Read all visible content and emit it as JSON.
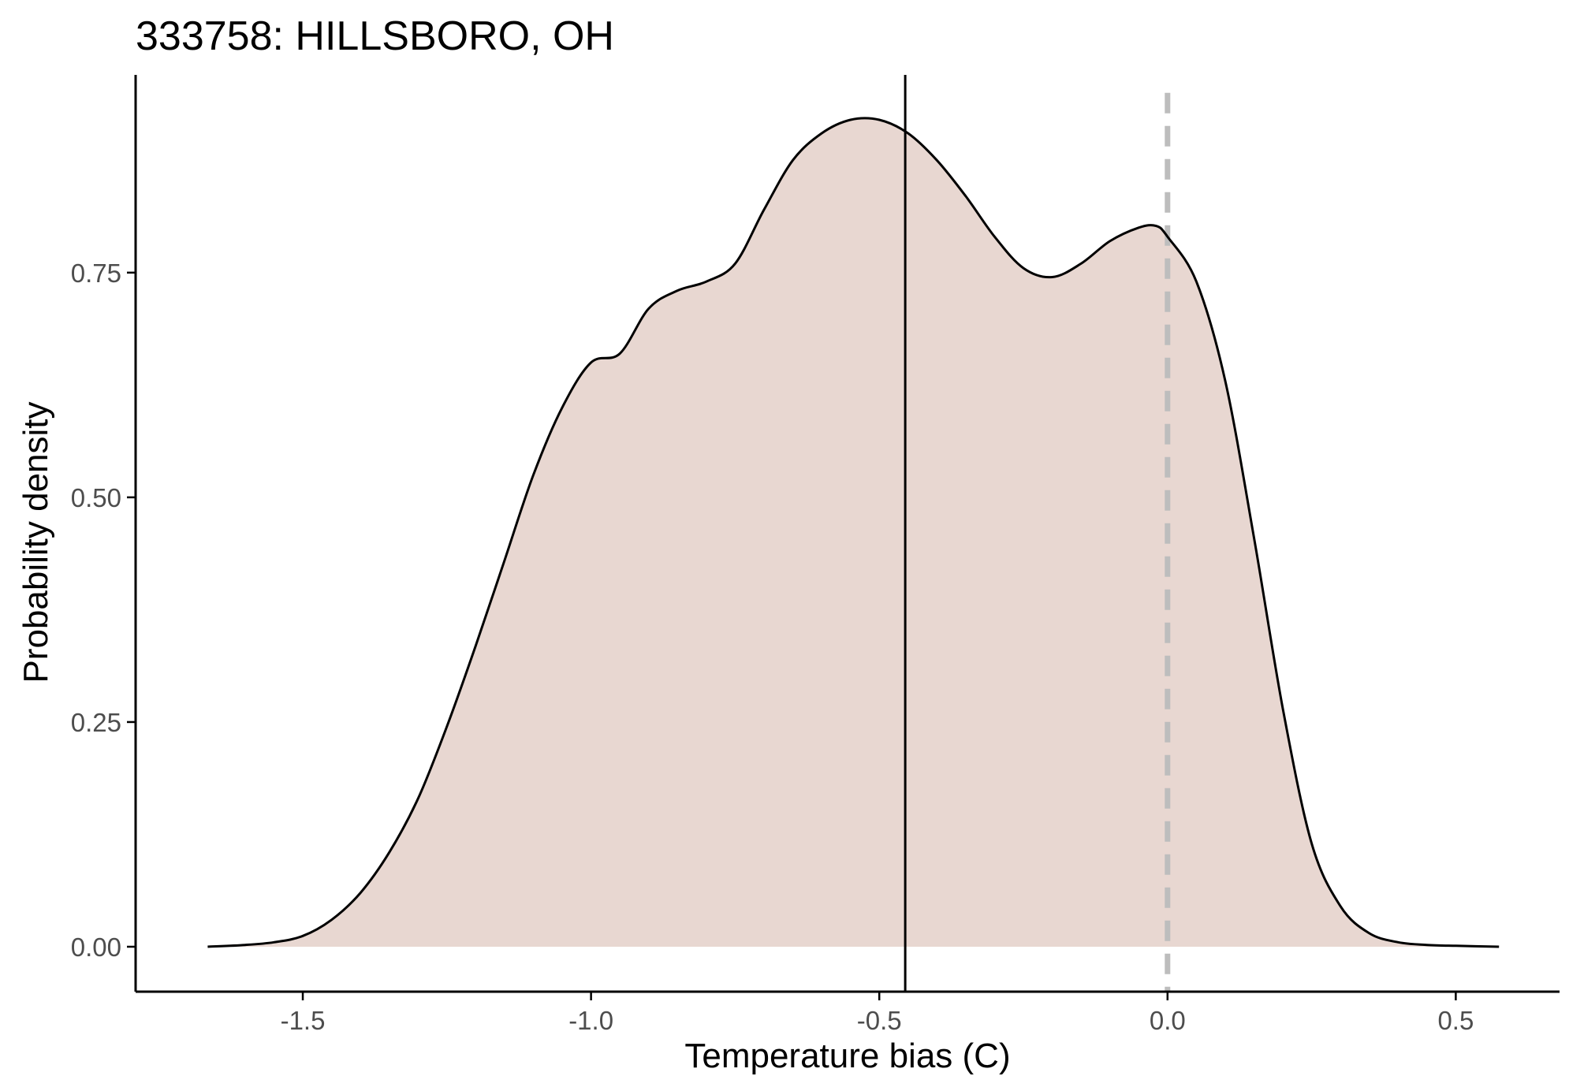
{
  "chart_data": {
    "type": "area",
    "title": "333758: HILLSBORO, OH",
    "xlabel": "Temperature bias (C)",
    "ylabel": "Probability density",
    "xlim": [
      -1.79,
      0.68
    ],
    "ylim": [
      -0.05,
      0.97
    ],
    "x_ticks": [
      -1.5,
      -1.0,
      -0.5,
      0.0,
      0.5
    ],
    "x_tick_labels": [
      "-1.5",
      "-1.0",
      "-0.5",
      "0.0",
      "0.5"
    ],
    "y_ticks": [
      0.0,
      0.25,
      0.5,
      0.75
    ],
    "y_tick_labels": [
      "0.00",
      "0.25",
      "0.50",
      "0.75"
    ],
    "grid": false,
    "fill_color": "#e8d7d1",
    "line_color": "#000000",
    "reference_lines": [
      {
        "x": -0.455,
        "style": "solid",
        "color": "#000000"
      },
      {
        "x": 0.0,
        "style": "dashed",
        "color": "#bdbdbd"
      }
    ],
    "series": [
      {
        "x": [
          -1.665,
          -1.6,
          -1.55,
          -1.5,
          -1.45,
          -1.4,
          -1.35,
          -1.3,
          -1.25,
          -1.2,
          -1.15,
          -1.1,
          -1.05,
          -1.0,
          -0.95,
          -0.9,
          -0.85,
          -0.8,
          -0.75,
          -0.7,
          -0.65,
          -0.6,
          -0.55,
          -0.5,
          -0.45,
          -0.4,
          -0.35,
          -0.3,
          -0.25,
          -0.2,
          -0.15,
          -0.1,
          -0.05,
          -0.02,
          0.0,
          0.05,
          0.1,
          0.15,
          0.2,
          0.25,
          0.3,
          0.35,
          0.4,
          0.45,
          0.5,
          0.575
        ],
        "y": [
          0.0,
          0.002,
          0.005,
          0.012,
          0.03,
          0.06,
          0.105,
          0.165,
          0.245,
          0.335,
          0.43,
          0.525,
          0.6,
          0.65,
          0.66,
          0.71,
          0.73,
          0.74,
          0.76,
          0.82,
          0.875,
          0.905,
          0.92,
          0.92,
          0.905,
          0.875,
          0.835,
          0.79,
          0.755,
          0.745,
          0.76,
          0.785,
          0.8,
          0.802,
          0.79,
          0.74,
          0.63,
          0.455,
          0.265,
          0.115,
          0.045,
          0.015,
          0.005,
          0.002,
          0.001,
          0.0
        ]
      }
    ]
  }
}
